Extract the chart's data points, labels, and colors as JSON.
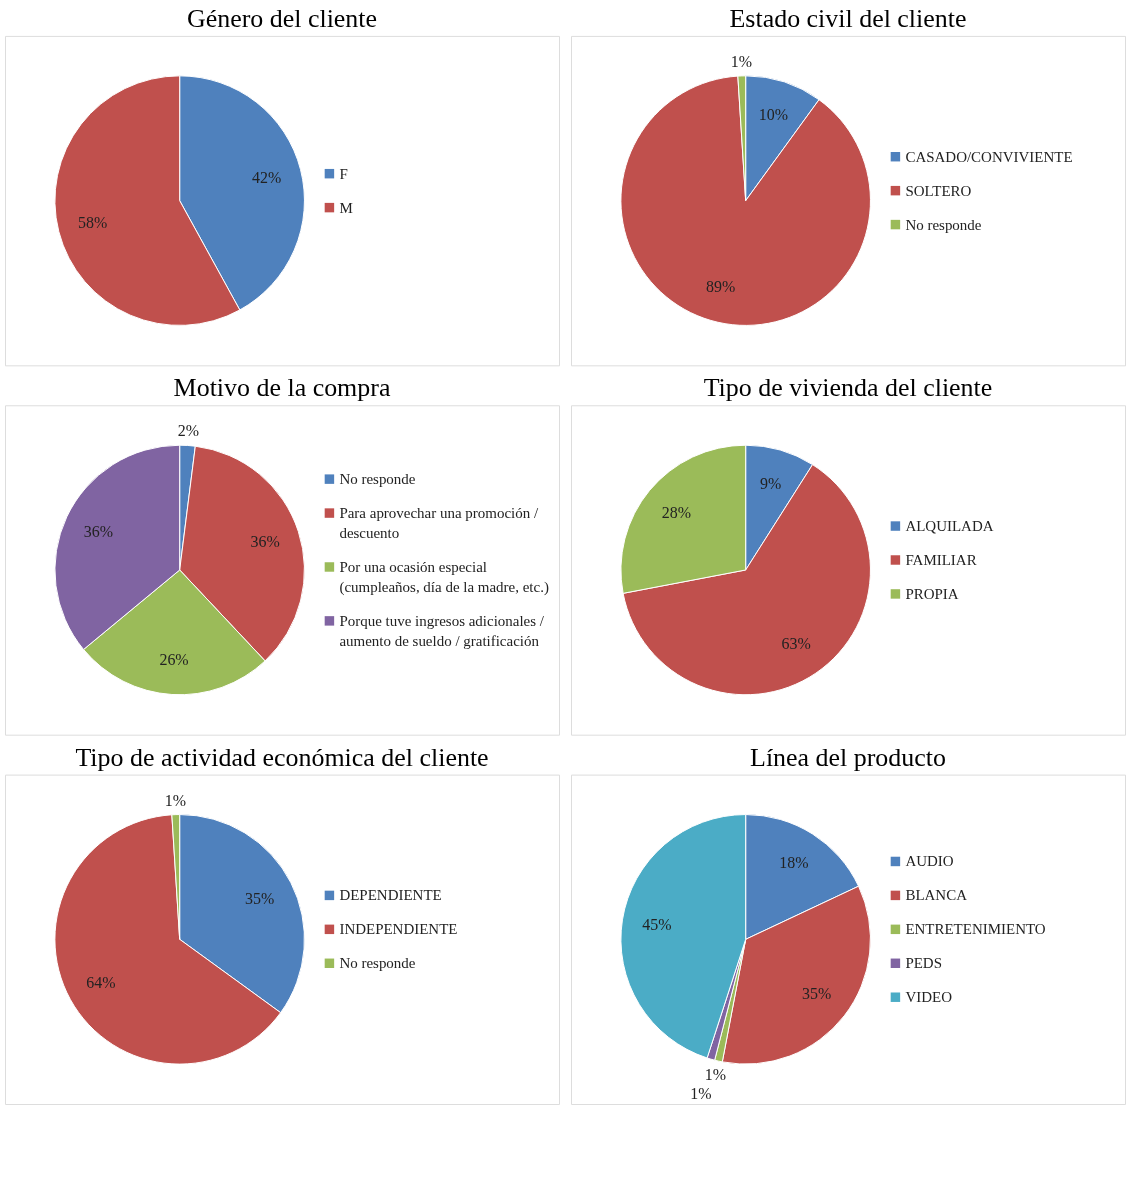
{
  "chart_data": [
    {
      "type": "pie",
      "title": "Género del cliente",
      "categories": [
        "F",
        "M"
      ],
      "values": [
        42,
        58
      ],
      "value_labels": [
        "42%",
        "58%"
      ],
      "colors": [
        "#4f81bd",
        "#c0504d"
      ],
      "legend": "right"
    },
    {
      "type": "pie",
      "title": "Estado civil del cliente",
      "categories": [
        "CASADO/CONVIVIENTE",
        "SOLTERO",
        "No responde"
      ],
      "values": [
        10,
        89,
        1
      ],
      "value_labels": [
        "10%",
        "89%",
        "1%"
      ],
      "colors": [
        "#4f81bd",
        "#c0504d",
        "#9bbb59"
      ],
      "legend": "right"
    },
    {
      "type": "pie",
      "title": "Motivo de la compra",
      "categories": [
        "No responde",
        "Para aprovechar una promoción / descuento",
        "Por una ocasión especial (cumpleaños, día de la madre, etc.)",
        "Porque tuve ingresos adicionales / aumento de sueldo / gratificación"
      ],
      "values": [
        2,
        36,
        26,
        36
      ],
      "value_labels": [
        "2%",
        "36%",
        "26%",
        "36%"
      ],
      "colors": [
        "#4f81bd",
        "#c0504d",
        "#9bbb59",
        "#8064a2"
      ],
      "legend": "right"
    },
    {
      "type": "pie",
      "title": "Tipo de vivienda del cliente",
      "categories": [
        "ALQUILADA",
        "FAMILIAR",
        "PROPIA"
      ],
      "values": [
        9,
        63,
        28
      ],
      "value_labels": [
        "9%",
        "63%",
        "28%"
      ],
      "colors": [
        "#4f81bd",
        "#c0504d",
        "#9bbb59"
      ],
      "legend": "right"
    },
    {
      "type": "pie",
      "title": "Tipo de actividad económica del cliente",
      "categories": [
        "DEPENDIENTE",
        "INDEPENDIENTE",
        "No responde"
      ],
      "values": [
        35,
        64,
        1
      ],
      "value_labels": [
        "35%",
        "64%",
        "1%"
      ],
      "colors": [
        "#4f81bd",
        "#c0504d",
        "#9bbb59"
      ],
      "legend": "right"
    },
    {
      "type": "pie",
      "title": "Línea del producto",
      "categories": [
        "AUDIO",
        "BLANCA",
        "ENTRETENIMIENTO",
        "PEDS",
        "VIDEO"
      ],
      "values": [
        18,
        35,
        1,
        1,
        45
      ],
      "value_labels": [
        "18%",
        "35%",
        "1%",
        "1%",
        "45%"
      ],
      "colors": [
        "#4f81bd",
        "#c0504d",
        "#9bbb59",
        "#8064a2",
        "#4bacc6"
      ],
      "legend": "right"
    }
  ]
}
